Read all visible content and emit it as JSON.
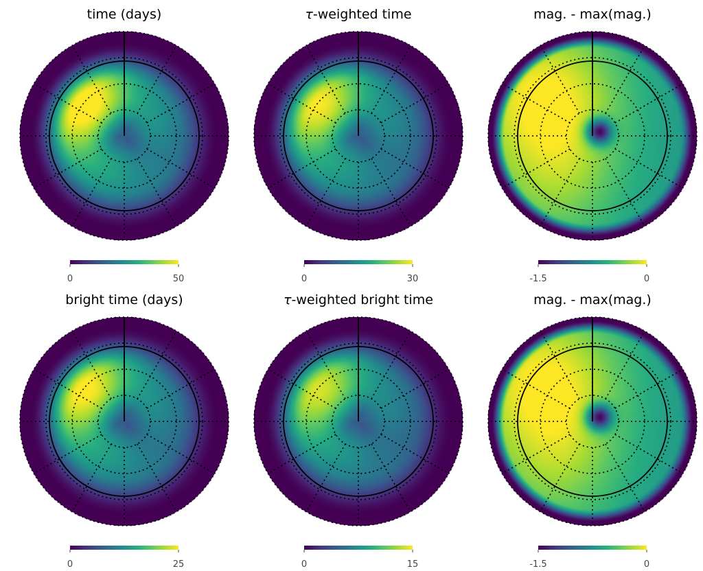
{
  "chart_data": [
    {
      "type": "heatmap",
      "projection": "polar (sky map)",
      "title_parts": [
        "",
        "time (days)"
      ],
      "colormap": "viridis",
      "colorbar": {
        "min": 0,
        "max": 50,
        "tick_labels": [
          "0",
          "50"
        ]
      },
      "field": {
        "peak": 1.0,
        "hole": 0.55,
        "dark_ring": true,
        "dark_blob": false
      }
    },
    {
      "type": "heatmap",
      "projection": "polar (sky map)",
      "title_parts": [
        "τ",
        "-weighted time"
      ],
      "colormap": "viridis",
      "colorbar": {
        "min": 0,
        "max": 30,
        "tick_labels": [
          "0",
          "30"
        ]
      },
      "field": {
        "peak": 0.93,
        "hole": 0.5,
        "dark_ring": true,
        "dark_blob": false
      }
    },
    {
      "type": "heatmap",
      "projection": "polar (sky map)",
      "title_parts": [
        "",
        "mag. - max(mag.)"
      ],
      "colormap": "viridis",
      "colorbar": {
        "min": -1.5,
        "max": 0,
        "tick_labels": [
          "-1.5",
          "0"
        ]
      },
      "field": {
        "peak": 1.0,
        "hole": 0.0,
        "dark_ring": false,
        "dark_blob": true
      }
    },
    {
      "type": "heatmap",
      "projection": "polar (sky map)",
      "title_parts": [
        "",
        "bright time (days)"
      ],
      "colormap": "viridis",
      "colorbar": {
        "min": 0,
        "max": 25,
        "tick_labels": [
          "0",
          "25"
        ]
      },
      "field": {
        "peak": 0.95,
        "hole": 0.55,
        "dark_ring": true,
        "dark_blob": false
      }
    },
    {
      "type": "heatmap",
      "projection": "polar (sky map)",
      "title_parts": [
        "τ",
        "-weighted bright time"
      ],
      "colormap": "viridis",
      "colorbar": {
        "min": 0,
        "max": 15,
        "tick_labels": [
          "0",
          "15"
        ]
      },
      "field": {
        "peak": 0.88,
        "hole": 0.5,
        "dark_ring": true,
        "dark_blob": false
      }
    },
    {
      "type": "heatmap",
      "projection": "polar (sky map)",
      "title_parts": [
        "",
        "mag. - max(mag.)"
      ],
      "colormap": "viridis",
      "colorbar": {
        "min": -1.5,
        "max": 0,
        "tick_labels": [
          "-1.5",
          "0"
        ]
      },
      "field": {
        "peak": 1.0,
        "hole": 0.0,
        "dark_ring": false,
        "dark_blob": true
      }
    }
  ]
}
